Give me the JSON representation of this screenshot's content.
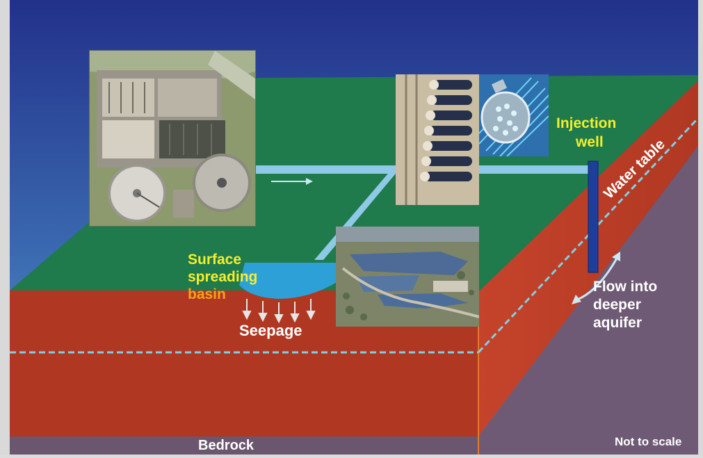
{
  "labels": {
    "surface": "Surface",
    "spreading": "spreading",
    "basin": "basin",
    "seepage": "Seepage",
    "injection": "Injection",
    "well": "well",
    "water_table": "Water table",
    "flow_line1": "Flow into",
    "flow_line2": "deeper",
    "flow_line3": "aquifer",
    "bedrock": "Bedrock",
    "not_to_scale": "Not to scale"
  },
  "colors": {
    "sky_top": "#26378f",
    "sky_bottom": "#4a8fc6",
    "ground_surface": "#1f7a4c",
    "soil": "#b23a24",
    "soil_slope": "#c2402a",
    "bedrock": "#6e5a74",
    "water_line": "#7fd0e4",
    "pipe": "#8ec9e6",
    "basin_water": "#2ea0d8",
    "well": "#1d3f9a",
    "label_yellow": "#f4ef2c",
    "label_orange": "#f6a21a"
  }
}
